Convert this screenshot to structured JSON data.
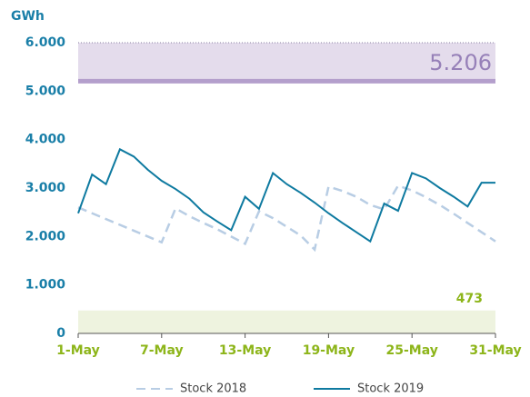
{
  "chart_data": {
    "type": "line",
    "y_label": "GWh",
    "categories": [
      "1-May",
      null,
      null,
      null,
      null,
      null,
      "7-May",
      null,
      null,
      null,
      null,
      null,
      "13-May",
      null,
      null,
      null,
      null,
      null,
      "19-May",
      null,
      null,
      null,
      null,
      null,
      "25-May",
      null,
      null,
      null,
      null,
      null,
      "31-May"
    ],
    "series": [
      {
        "name": "Stock 2018",
        "color": "#b8cde4",
        "dash": true,
        "values": [
          2600,
          2480,
          2360,
          2240,
          2120,
          2000,
          1880,
          2580,
          2420,
          2280,
          2150,
          2000,
          1850,
          2520,
          2380,
          2200,
          2020,
          1730,
          3030,
          2940,
          2820,
          2650,
          2560,
          3050,
          2950,
          2810,
          2650,
          2470,
          2280,
          2090,
          1900
        ]
      },
      {
        "name": "Stock 2019",
        "color": "#0e7aa0",
        "dash": false,
        "values": [
          2480,
          3280,
          3080,
          3800,
          3650,
          3380,
          3150,
          2980,
          2780,
          2500,
          2310,
          2130,
          2820,
          2570,
          3310,
          3080,
          2900,
          2700,
          2480,
          2280,
          2090,
          1900,
          2680,
          2530,
          3310,
          3200,
          3000,
          2820,
          2620,
          3110,
          3110
        ]
      }
    ],
    "bands": [
      {
        "from": 5206,
        "to": 6000,
        "label": "5.206",
        "color": "#e4dcec",
        "edge": "#b49fcc",
        "text_color": "#9680b8"
      },
      {
        "from": 0,
        "to": 473,
        "label": "473",
        "color": "#eef3df",
        "edge": null,
        "text_color": "#8db51a"
      }
    ],
    "ylim": [
      0,
      6000
    ],
    "yticks": [
      0,
      {
        "value": 1000,
        "label": "1.000"
      },
      {
        "value": 2000,
        "label": "2.000"
      },
      {
        "value": 3000,
        "label": "3.000"
      },
      {
        "value": 4000,
        "label": "4.000"
      },
      {
        "value": 5000,
        "label": "5.000"
      },
      {
        "value": 6000,
        "label": "6.000"
      }
    ],
    "grid": false
  }
}
